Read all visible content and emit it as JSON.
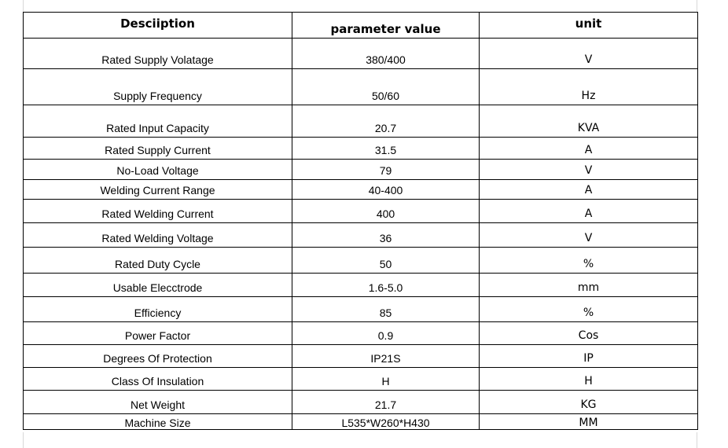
{
  "header": {
    "description": "Desciiption",
    "parameter_value": "parameter value",
    "unit": "unit"
  },
  "rows": [
    {
      "description": "Rated Supply Volatage",
      "value": "380/400",
      "unit": "V"
    },
    {
      "description": "Supply Frequency",
      "value": "50/60",
      "unit": "Hz"
    },
    {
      "description": "Rated Input Capacity",
      "value": "20.7",
      "unit": "KVA"
    },
    {
      "description": "Rated Supply Current",
      "value": "31.5",
      "unit": "A"
    },
    {
      "description": "No-Load Voltage",
      "value": "79",
      "unit": "V"
    },
    {
      "description": "Welding Current Range",
      "value": "40-400",
      "unit": "A"
    },
    {
      "description": "Rated Welding Current",
      "value": "400",
      "unit": "A"
    },
    {
      "description": "Rated Welding Voltage",
      "value": "36",
      "unit": "V"
    },
    {
      "description": "Rated Duty Cycle",
      "value": "50",
      "unit": "%"
    },
    {
      "description": "Usable Elecctrode",
      "value": "1.6-5.0",
      "unit": "mm"
    },
    {
      "description": "Efficiency",
      "value": "85",
      "unit": "%"
    },
    {
      "description": "Power Factor",
      "value": "0.9",
      "unit": "Cos"
    },
    {
      "description": "Degrees Of Protection",
      "value": "IP21S",
      "unit": "IP"
    },
    {
      "description": "Class Of Insulation",
      "value": "H",
      "unit": "H"
    },
    {
      "description": "Net Weight",
      "value": "21.7",
      "unit": "KG"
    },
    {
      "description": "Machine Size",
      "value": "L535*W260*H430",
      "unit": "MM"
    }
  ]
}
